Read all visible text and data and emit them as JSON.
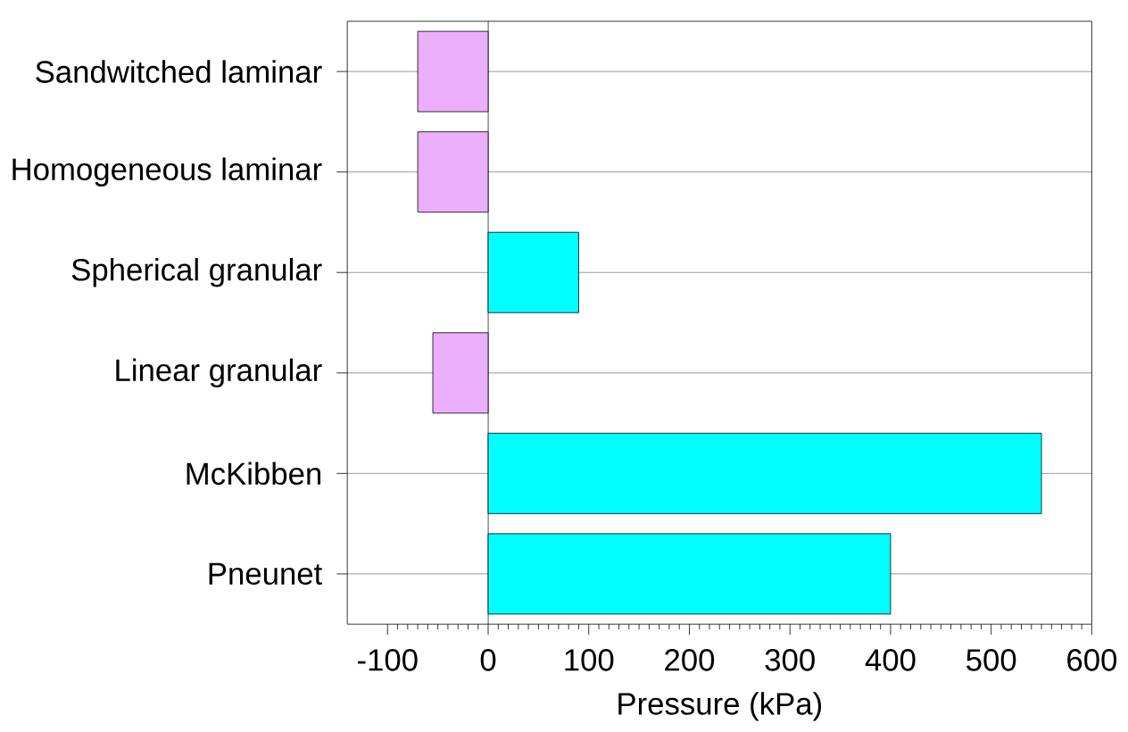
{
  "chart_data": {
    "type": "bar",
    "orientation": "horizontal",
    "xlabel": "Pressure (kPa)",
    "categories": [
      "Sandwitched laminar",
      "Homogeneous laminar",
      "Spherical granular",
      "Linear granular",
      "McKibben",
      "Pneunet"
    ],
    "values": [
      -70,
      -70,
      90,
      -55,
      550,
      400
    ],
    "colors": [
      "#ebaffb",
      "#ebaffb",
      "#00ffff",
      "#ebaffb",
      "#00ffff",
      "#00ffff"
    ],
    "xlim": [
      -140,
      600
    ],
    "xticks": [
      -100,
      0,
      100,
      200,
      300,
      400,
      500,
      600
    ],
    "grid": "y"
  }
}
